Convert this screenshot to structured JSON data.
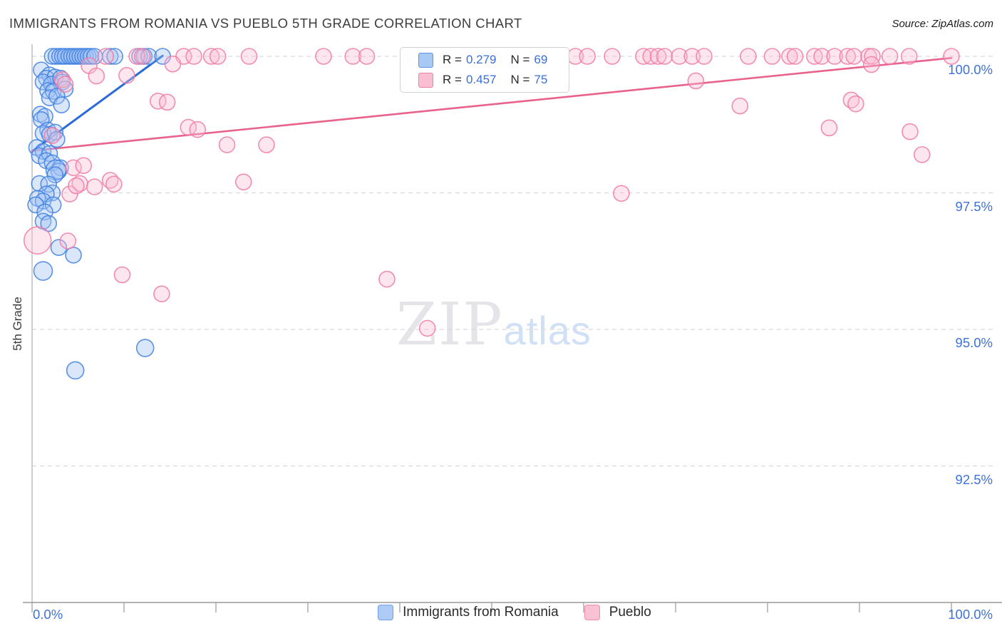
{
  "header": {
    "title": "IMMIGRANTS FROM ROMANIA VS PUEBLO 5TH GRADE CORRELATION CHART",
    "source": "Source: ZipAtlas.com"
  },
  "watermark": {
    "zip": "ZIP",
    "atlas": "atlas"
  },
  "axes": {
    "y_title": "5th Grade",
    "x_min_label": "0.0%",
    "x_max_label": "100.0%"
  },
  "legend_box": {
    "rows": [
      {
        "series": "romania",
        "r_label": "R =",
        "r_value": "0.279",
        "n_label": "N =",
        "n_value": "69"
      },
      {
        "series": "pueblo",
        "r_label": "R =",
        "r_value": "0.457",
        "n_label": "N =",
        "n_value": "75"
      }
    ]
  },
  "colors": {
    "accent_blue": "#3f72d6",
    "blue_stroke": "#4080e0",
    "blue_fill": "#9dc1f5",
    "pink_stroke": "#f07aa6",
    "pink_fill": "#f9bed2",
    "trend_blue": "#2a6bd6",
    "trend_pink": "#e8628c",
    "grid": "#d9d9d9",
    "axis": "#9a9a9a",
    "spine": "#b5b5b5"
  },
  "chart_data": {
    "type": "scatter",
    "xlabel": "",
    "ylabel": "5th Grade",
    "xlim": [
      0,
      100
    ],
    "ylim": [
      90,
      100.35
    ],
    "x_ticks_every": 10,
    "y_gridlines": [
      {
        "value": 100.0,
        "label": "100.0%"
      },
      {
        "value": 97.5,
        "label": "97.5%"
      },
      {
        "value": 95.0,
        "label": "95.0%"
      },
      {
        "value": 92.5,
        "label": "92.5%"
      }
    ],
    "series": [
      {
        "name": "Immigrants from Romania",
        "R": 0.279,
        "N": 69,
        "trend": {
          "x1": 0,
          "y1": 98.26,
          "x2": 14.2,
          "y2": 100.01
        },
        "points": [
          [
            2.2,
            100
          ],
          [
            2.6,
            100
          ],
          [
            3.0,
            100
          ],
          [
            3.3,
            100
          ],
          [
            3.6,
            100
          ],
          [
            4.0,
            100
          ],
          [
            4.3,
            100
          ],
          [
            4.6,
            100
          ],
          [
            4.9,
            100
          ],
          [
            5.2,
            100
          ],
          [
            5.5,
            100
          ],
          [
            5.8,
            100
          ],
          [
            6.1,
            100
          ],
          [
            6.4,
            100
          ],
          [
            6.8,
            100
          ],
          [
            8.5,
            100
          ],
          [
            9.0,
            100
          ],
          [
            11.7,
            100
          ],
          [
            12.2,
            100
          ],
          [
            12.7,
            100
          ],
          [
            14.2,
            100
          ],
          [
            1.0,
            99.75
          ],
          [
            1.9,
            99.66
          ],
          [
            1.55,
            99.6
          ],
          [
            2.5,
            99.62
          ],
          [
            1.2,
            99.53
          ],
          [
            2.1,
            99.49
          ],
          [
            3.1,
            99.6
          ],
          [
            3.3,
            99.53
          ],
          [
            1.7,
            99.37
          ],
          [
            2.3,
            99.36
          ],
          [
            3.6,
            99.4
          ],
          [
            1.9,
            99.24
          ],
          [
            2.7,
            99.27
          ],
          [
            3.2,
            99.11
          ],
          [
            0.9,
            98.94
          ],
          [
            1.4,
            98.9
          ],
          [
            1.0,
            98.84
          ],
          [
            1.7,
            98.65
          ],
          [
            1.2,
            98.59
          ],
          [
            1.9,
            98.57
          ],
          [
            2.5,
            98.61
          ],
          [
            2.7,
            98.48
          ],
          [
            0.5,
            98.33
          ],
          [
            1.2,
            98.26
          ],
          [
            0.8,
            98.18
          ],
          [
            1.9,
            98.22
          ],
          [
            1.55,
            98.09
          ],
          [
            2.2,
            98.05
          ],
          [
            3.1,
            97.96
          ],
          [
            2.9,
            97.9
          ],
          [
            2.6,
            97.92,
            14
          ],
          [
            2.5,
            97.83
          ],
          [
            0.8,
            97.67
          ],
          [
            1.8,
            97.66
          ],
          [
            2.2,
            97.5
          ],
          [
            1.55,
            97.48
          ],
          [
            0.6,
            97.4
          ],
          [
            1.2,
            97.35
          ],
          [
            2.3,
            97.28
          ],
          [
            0.4,
            97.28
          ],
          [
            1.4,
            97.15
          ],
          [
            1.2,
            96.98
          ],
          [
            1.8,
            96.94
          ],
          [
            2.9,
            96.5
          ],
          [
            4.5,
            96.36
          ],
          [
            1.2,
            96.07,
            13
          ],
          [
            12.3,
            94.66,
            12
          ],
          [
            4.7,
            94.25,
            12
          ]
        ]
      },
      {
        "name": "Pueblo",
        "R": 0.457,
        "N": 75,
        "trend": {
          "x1": 0,
          "y1": 98.27,
          "x2": 100,
          "y2": 99.97
        },
        "points": [
          [
            8.0,
            100
          ],
          [
            11.4,
            100
          ],
          [
            12.0,
            100
          ],
          [
            16.5,
            100
          ],
          [
            17.6,
            100
          ],
          [
            19.5,
            100
          ],
          [
            20.2,
            100
          ],
          [
            23.6,
            100
          ],
          [
            31.7,
            100
          ],
          [
            34.9,
            100
          ],
          [
            36.4,
            100
          ],
          [
            41.6,
            100
          ],
          [
            45.5,
            100
          ],
          [
            46.7,
            100
          ],
          [
            59.1,
            100
          ],
          [
            60.4,
            100
          ],
          [
            63.1,
            100
          ],
          [
            66.5,
            100
          ],
          [
            67.3,
            100
          ],
          [
            68.1,
            100
          ],
          [
            68.8,
            100
          ],
          [
            70.4,
            100
          ],
          [
            71.8,
            100
          ],
          [
            73.1,
            100
          ],
          [
            77.9,
            100
          ],
          [
            80.5,
            100
          ],
          [
            82.4,
            100
          ],
          [
            83.0,
            100
          ],
          [
            85.1,
            100
          ],
          [
            85.9,
            100
          ],
          [
            87.3,
            100
          ],
          [
            88.7,
            100
          ],
          [
            89.4,
            100
          ],
          [
            91.0,
            100
          ],
          [
            91.4,
            100
          ],
          [
            93.3,
            100
          ],
          [
            95.4,
            100
          ],
          [
            100.0,
            100
          ],
          [
            6.2,
            99.83
          ],
          [
            15.3,
            99.86
          ],
          [
            10.3,
            99.65
          ],
          [
            7.0,
            99.64
          ],
          [
            3.3,
            99.57
          ],
          [
            3.6,
            99.49
          ],
          [
            13.7,
            99.18
          ],
          [
            14.7,
            99.16
          ],
          [
            72.2,
            99.55
          ],
          [
            77.0,
            99.09
          ],
          [
            89.1,
            99.2
          ],
          [
            89.6,
            99.13
          ],
          [
            91.3,
            99.85
          ],
          [
            2.2,
            98.55
          ],
          [
            17.0,
            98.7
          ],
          [
            18.0,
            98.66
          ],
          [
            21.2,
            98.38
          ],
          [
            25.5,
            98.38
          ],
          [
            23.0,
            97.7
          ],
          [
            86.7,
            98.69
          ],
          [
            95.5,
            98.62
          ],
          [
            96.8,
            98.2
          ],
          [
            4.5,
            97.96
          ],
          [
            5.6,
            98.0
          ],
          [
            5.2,
            97.67
          ],
          [
            8.5,
            97.73
          ],
          [
            8.9,
            97.66
          ],
          [
            4.1,
            97.48
          ],
          [
            4.8,
            97.63
          ],
          [
            6.8,
            97.61
          ],
          [
            64.1,
            97.49
          ],
          [
            0.6,
            96.63,
            19
          ],
          [
            3.9,
            96.62
          ],
          [
            9.8,
            96.0
          ],
          [
            14.1,
            95.65
          ],
          [
            38.6,
            95.92
          ],
          [
            43.0,
            95.02
          ]
        ]
      }
    ]
  }
}
